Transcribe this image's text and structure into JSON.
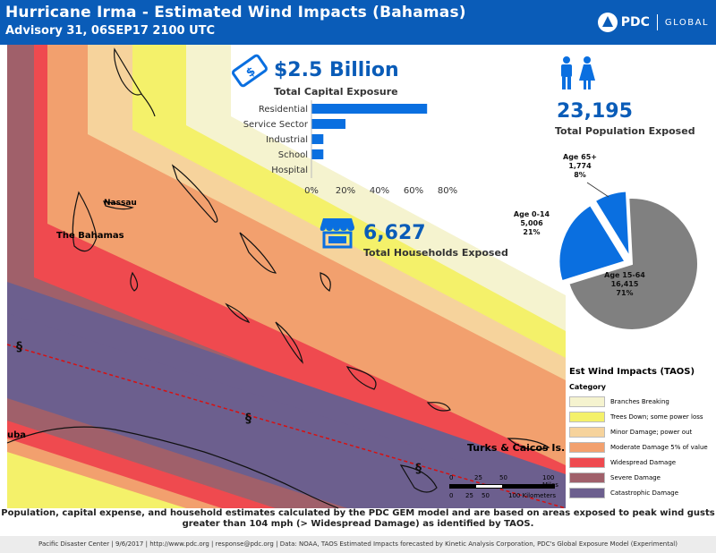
{
  "header": {
    "title": "Hurricane Irma - Estimated Wind Impacts (Bahamas)",
    "subtitle": "Advisory 31, 06SEP17 2100 UTC",
    "logo_pdc": "PDC",
    "logo_global": "GLOBAL"
  },
  "capital": {
    "value": "$2.5 Billion",
    "label": "Total Capital Exposure",
    "icon": "money-bill-icon"
  },
  "chart_data": {
    "type": "bar",
    "orientation": "horizontal",
    "categories": [
      "Residential",
      "Service Sector",
      "Industrial",
      "School",
      "Hospital"
    ],
    "values": [
      68,
      20,
      7,
      7,
      0
    ],
    "xlim": [
      0,
      80
    ],
    "xticks": [
      "0%",
      "20%",
      "40%",
      "60%",
      "80%"
    ],
    "color": "#0a6fe0"
  },
  "households": {
    "value": "6,627",
    "label": "Total Households Exposed",
    "icon": "store-icon"
  },
  "population": {
    "value": "23,195",
    "label": "Total Population Exposed",
    "icon": "people-icon"
  },
  "age_pie": {
    "type": "pie",
    "slices": [
      {
        "label": "Age 65+",
        "count": "1,774",
        "pct": "8%",
        "value": 8,
        "color": "#0a6fe0"
      },
      {
        "label": "Age 0-14",
        "count": "5,006",
        "pct": "21%",
        "value": 21,
        "color": "#0a6fe0"
      },
      {
        "label": "Age 15-64",
        "count": "16,415",
        "pct": "71%",
        "value": 71,
        "color": "#808080"
      }
    ]
  },
  "map": {
    "labels": {
      "nassau": "Nassau",
      "bahamas": "The Bahamas",
      "cuba": "uba",
      "turks": "Turks & Caicos Is."
    },
    "scale": {
      "miles": [
        "0",
        "25",
        "50",
        "100 Miles"
      ],
      "km": [
        "0",
        "25",
        "50",
        "100 Kilometers"
      ]
    }
  },
  "legend": {
    "title": "Est Wind Impacts (TAOS)",
    "category_label": "Category",
    "items": [
      {
        "label": "Branches Breaking",
        "color": "#f5f3cf"
      },
      {
        "label": "Trees Down; some power loss",
        "color": "#f4f16a"
      },
      {
        "label": "Minor Damage; power out",
        "color": "#f6d39c"
      },
      {
        "label": "Moderate Damage 5% of value",
        "color": "#f2a06e"
      },
      {
        "label": "Widespread Damage",
        "color": "#ef4a4f"
      },
      {
        "label": "Severe Damage",
        "color": "#a0606a"
      },
      {
        "label": "Catastrophic Damage",
        "color": "#6c5f8e"
      }
    ]
  },
  "footer": {
    "note": "Population, capital expense, and household estimates calculated by the PDC GEM model and are based on areas exposed to peak wind gusts greater than 104 mph (> Widespread Damage) as identified by TAOS.",
    "credits": "Pacific Disaster Center | 9/6/2017 | http://www.pdc.org | response@pdc.org | Data: NOAA, TAOS Estimated Impacts forecasted by Kinetic Analysis Corporation, PDC's Global Exposure Model (Experimental)"
  }
}
